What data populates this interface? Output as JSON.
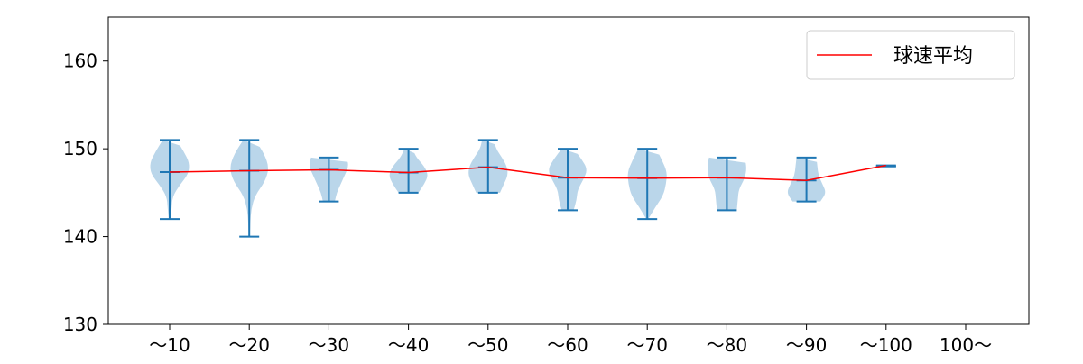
{
  "chart_data": {
    "type": "violin",
    "title": "",
    "xlabel": "",
    "ylabel": "",
    "ylim": [
      130,
      165
    ],
    "yticks": [
      130,
      140,
      150,
      160
    ],
    "grid": false,
    "categories": [
      "～10",
      "～20",
      "～30",
      "～40",
      "～50",
      "～60",
      "～70",
      "～80",
      "～90",
      "～100",
      "100～"
    ],
    "min": [
      142,
      140,
      144,
      145,
      145,
      143,
      142,
      143,
      144,
      148,
      null
    ],
    "max": [
      151,
      151,
      149,
      150,
      151,
      150,
      150,
      149,
      149,
      148,
      null
    ],
    "mean": [
      147.35,
      147.5,
      147.6,
      147.3,
      147.9,
      146.7,
      146.65,
      146.7,
      146.4,
      148.1,
      null
    ],
    "density_profile": [
      [
        0.05,
        0.1,
        0.15,
        0.5,
        0.95,
        1.0,
        0.7,
        0.35
      ],
      [
        0.03,
        0.05,
        0.1,
        0.3,
        0.8,
        1.0,
        0.75,
        0.3
      ],
      [
        0.3,
        0.4,
        0.6,
        0.8,
        1.0,
        0.9
      ],
      [
        0.5,
        0.8,
        1.0,
        0.8,
        0.4,
        0.2
      ],
      [
        0.6,
        0.8,
        1.0,
        0.95,
        0.7,
        0.4,
        0.3
      ],
      [
        0.3,
        0.45,
        0.5,
        0.8,
        1.0,
        0.7,
        0.3
      ],
      [
        0.05,
        0.4,
        0.8,
        0.95,
        1.0,
        0.75,
        0.45
      ],
      [
        0.5,
        0.55,
        0.6,
        0.9,
        1.0,
        0.9
      ],
      [
        0.7,
        1.0,
        0.8,
        0.6,
        0.55,
        0.5
      ]
    ],
    "violin_color": "#1f77b4",
    "violin_fill": "#bad6ea",
    "series": [
      {
        "name": "球速平均",
        "color": "#ff0000",
        "values_ref": "mean"
      }
    ],
    "legend": {
      "position": "top-right",
      "label": "球速平均"
    }
  }
}
